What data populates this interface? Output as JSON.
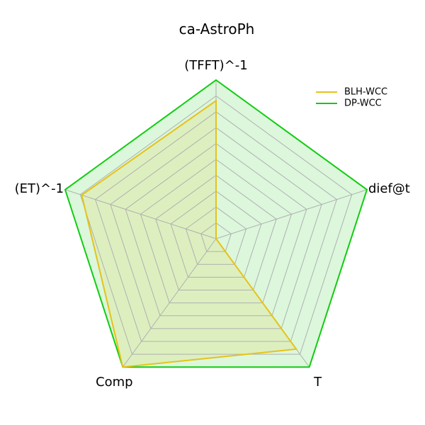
{
  "chart_data": {
    "type": "radar",
    "title": "ca-AstroPh",
    "axes": [
      "(TFFT)^-1",
      "dief@t",
      "T",
      "Comp",
      "(ET)^-1"
    ],
    "rlim": [
      0,
      1
    ],
    "grid_levels": 10,
    "grid": true,
    "legend_position": "top-right",
    "series": [
      {
        "name": "BLH-WCC",
        "values": [
          0.87,
          0.0,
          0.86,
          1.0,
          0.89
        ],
        "color": "#e6c21a",
        "fill": "#e6c21a"
      },
      {
        "name": "DP-WCC",
        "values": [
          1.0,
          1.0,
          1.0,
          1.0,
          1.0
        ],
        "color": "#11cc11",
        "fill": "#11cc11"
      }
    ]
  }
}
